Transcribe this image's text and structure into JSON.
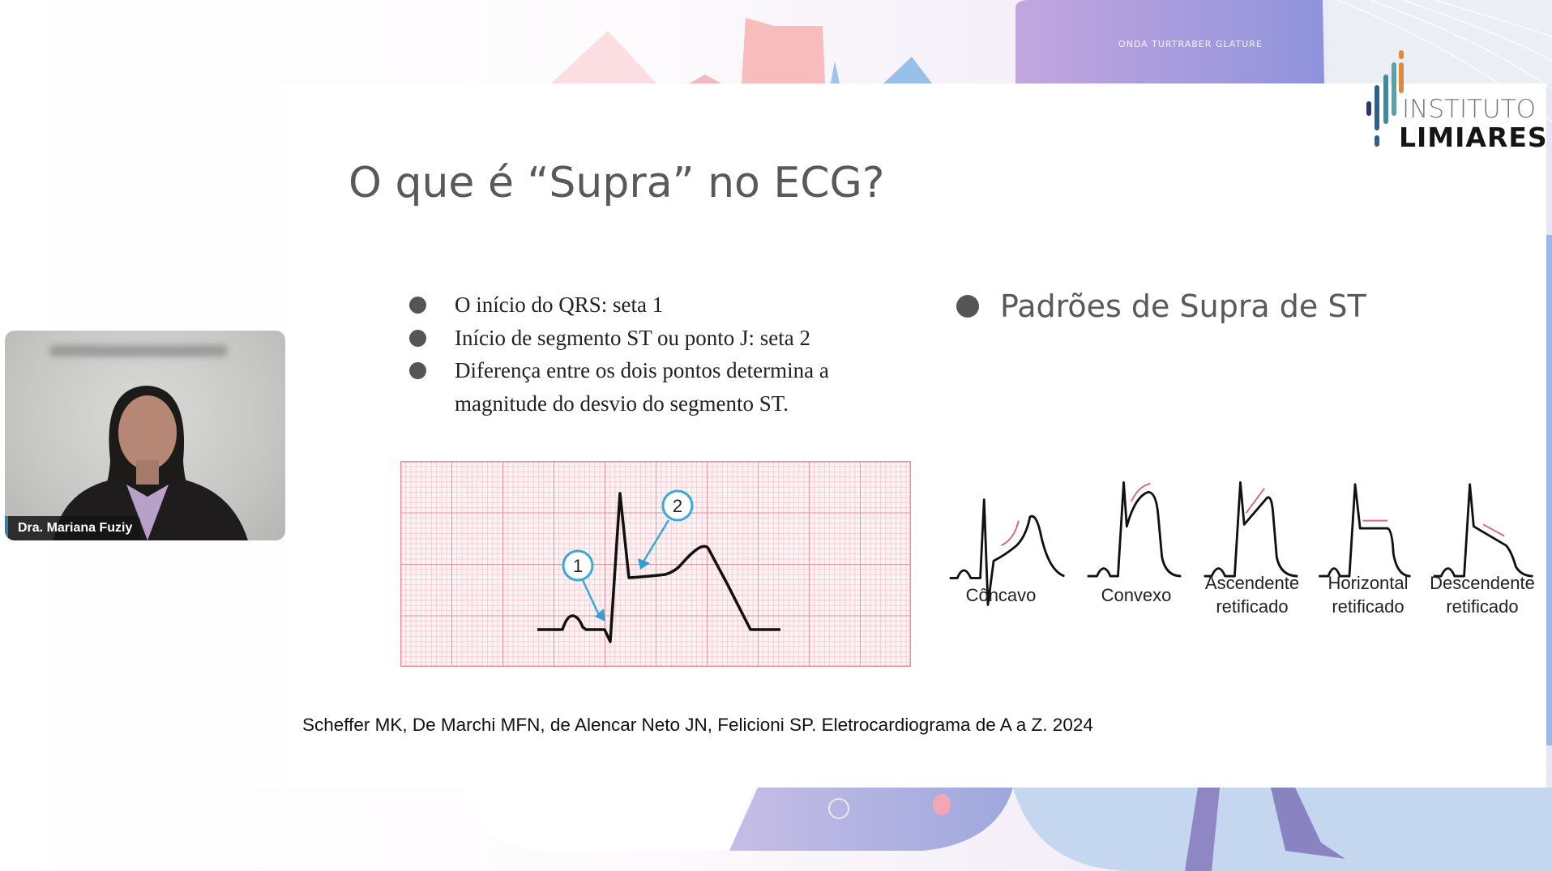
{
  "background": {
    "banner_text": "ONDA TURTRABER GLATURE",
    "colors": {
      "purple": "#a89fe0",
      "pink": "#f7b9b9",
      "blue": "#9cc3ea"
    }
  },
  "logo": {
    "line1": "INSTITUTO",
    "line2": "LIMIARES",
    "bar_colors": [
      "#2b3a6b",
      "#2e5f8f",
      "#3f8aa1",
      "#5aa2a8",
      "#e08a3a",
      "#e0452e"
    ]
  },
  "slide": {
    "title": "O que é “Supra” no ECG?",
    "bullets": [
      "O início do QRS: seta 1",
      "Início de segmento ST ou ponto J: seta 2",
      "Diferença entre os dois pontos determina a magnitude do desvio do segmento ST."
    ],
    "ecg_figure": {
      "markers": [
        "1",
        "2"
      ],
      "grid_color": "#f08f9c",
      "arrow_color": "#3aa8d8"
    },
    "patterns_heading": "Padrões de Supra de ST",
    "patterns": [
      {
        "line1": "Côncavo",
        "line2": ""
      },
      {
        "line1": "Convexo",
        "line2": ""
      },
      {
        "line1": "Ascendente",
        "line2": "retificado"
      },
      {
        "line1": "Horizontal",
        "line2": "retificado"
      },
      {
        "line1": "Descendente",
        "line2": "retificado"
      }
    ],
    "citation": "Scheffer MK, De Marchi MFN, de Alencar Neto JN, Felicioni SP. Eletrocardiograma de A a Z. 2024"
  },
  "webcam": {
    "participant_name": "Dra. Mariana Fuziy"
  }
}
